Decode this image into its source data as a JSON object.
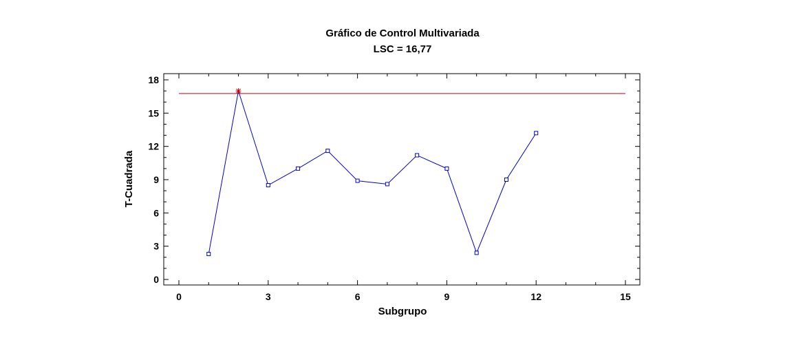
{
  "chart_data": {
    "type": "line",
    "title": "Gráfico de Control Multivariada",
    "subtitle": "LSC = 16,77",
    "xlabel": "Subgrupo",
    "ylabel": "T-Cuadrada",
    "xlim": [
      0,
      15
    ],
    "ylim": [
      0,
      18
    ],
    "x_ticks": [
      0,
      3,
      6,
      9,
      12,
      15
    ],
    "y_ticks": [
      0,
      3,
      6,
      9,
      12,
      15,
      18
    ],
    "series": [
      {
        "x": [
          1,
          2,
          3,
          4,
          5,
          6,
          7,
          8,
          9,
          10,
          11,
          12
        ],
        "values": [
          2.3,
          17.0,
          8.5,
          10.0,
          11.6,
          8.9,
          8.6,
          11.2,
          10.0,
          2.4,
          9.0,
          13.2
        ],
        "color": "#0000cc",
        "out_of_control_color": "#cc0000"
      }
    ],
    "control_limit": {
      "value": 16.77,
      "color": "#cc0000"
    },
    "grid": false
  }
}
